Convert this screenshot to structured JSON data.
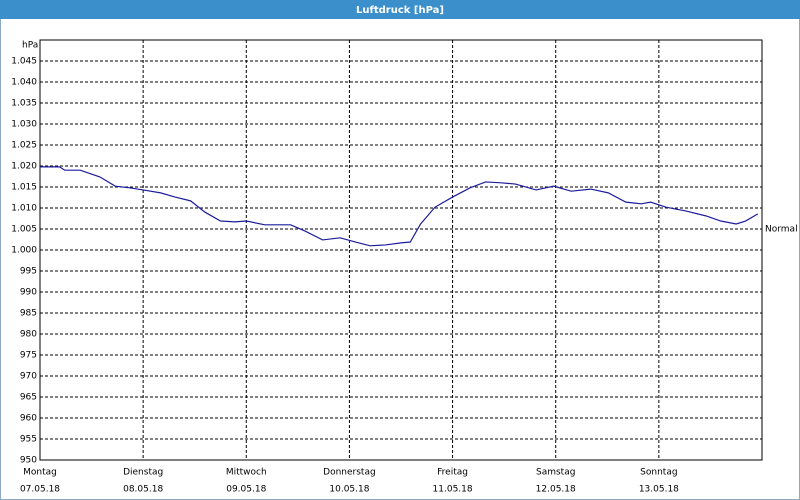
{
  "chart_data": {
    "type": "line",
    "title": "Luftdruck [hPa]",
    "y_unit": "hPa",
    "annotation": {
      "text": "Normal",
      "value": 1005
    },
    "xlim": [
      0,
      7
    ],
    "xticks": [
      {
        "value": 0,
        "label": "07.05.18"
      },
      {
        "value": 1,
        "label": "08.05.18"
      },
      {
        "value": 2,
        "label": "09.05.18"
      },
      {
        "value": 3,
        "label": "10.05.18"
      },
      {
        "value": 4,
        "label": "11.05.18"
      },
      {
        "value": 5,
        "label": "12.05.18"
      },
      {
        "value": 6,
        "label": "13.05.18"
      }
    ],
    "weekdays": [
      "Montag",
      "Dienstag",
      "Mittwoch",
      "Donnerstag",
      "Freitag",
      "Samstag",
      "Sonntag"
    ],
    "ylim": [
      950,
      1050
    ],
    "yticks": [
      950,
      955,
      960,
      965,
      970,
      975,
      980,
      985,
      990,
      995,
      {
        "value": 1000,
        "label": "1.000"
      },
      {
        "value": 1005,
        "label": "1.005"
      },
      {
        "value": 1010,
        "label": "1.010"
      },
      {
        "value": 1015,
        "label": "1.015"
      },
      {
        "value": 1020,
        "label": "1.020"
      },
      {
        "value": 1025,
        "label": "1.025"
      },
      {
        "value": 1030,
        "label": "1.030"
      },
      {
        "value": 1035,
        "label": "1.035"
      },
      {
        "value": 1040,
        "label": "1.040"
      },
      {
        "value": 1045,
        "label": "1.045"
      }
    ],
    "grid": true,
    "x": [
      0,
      0.19,
      0.24,
      0.39,
      0.58,
      0.73,
      0.87,
      1.0,
      1.17,
      1.31,
      1.46,
      1.6,
      1.75,
      1.89,
      2.0,
      2.18,
      2.43,
      2.57,
      2.74,
      2.91,
      3.06,
      3.2,
      3.35,
      3.5,
      3.59,
      3.69,
      3.83,
      4.0,
      4.17,
      4.32,
      4.47,
      4.61,
      4.81,
      4.98,
      5.15,
      5.34,
      5.51,
      5.68,
      5.83,
      5.92,
      6.07,
      6.26,
      6.46,
      6.6,
      6.75,
      6.84,
      6.96
    ],
    "series": [
      {
        "color": "#1c1c9c",
        "values": [
          1019.8,
          1019.8,
          1019,
          1019,
          1017.4,
          1015.2,
          1014.8,
          1014.3,
          1013.6,
          1012.6,
          1011.7,
          1009,
          1006.9,
          1006.7,
          1006.9,
          1006,
          1006,
          1004.5,
          1002.4,
          1002.9,
          1001.9,
          1001,
          1001.2,
          1001.7,
          1001.9,
          1006.2,
          1010.2,
          1012.6,
          1014.8,
          1016.2,
          1016,
          1015.7,
          1014.3,
          1015.2,
          1014,
          1014.5,
          1013.6,
          1011.4,
          1011,
          1011.4,
          1010.2,
          1009.3,
          1008.1,
          1006.9,
          1006.2,
          1006.9,
          1008.6
        ]
      }
    ]
  }
}
